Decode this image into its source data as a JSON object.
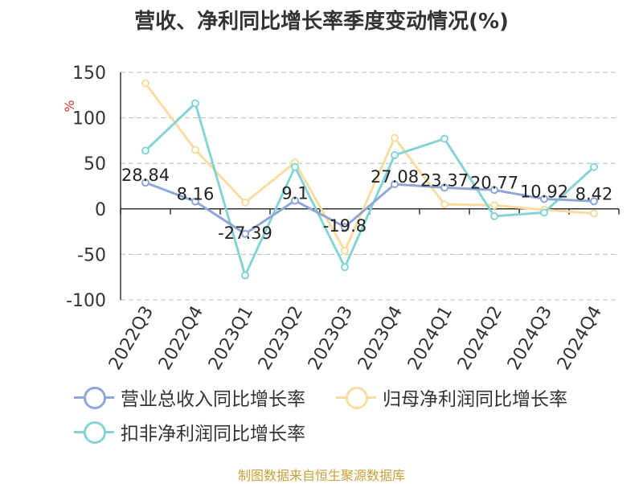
{
  "title": "营收、净利同比增长率季度变动情况(%)",
  "source": "制图数据来自恒生聚源数据库",
  "chart_data": {
    "type": "line",
    "ylabel": "%",
    "ylim": [
      -100,
      150
    ],
    "yticks": [
      150,
      100,
      50,
      0,
      -50,
      -100
    ],
    "grid": true,
    "legend_position": "bottom",
    "categories": [
      "2022Q3",
      "2022Q4",
      "2023Q1",
      "2023Q2",
      "2023Q3",
      "2023Q4",
      "2024Q1",
      "2024Q2",
      "2024Q3",
      "2024Q4"
    ],
    "series": [
      {
        "name": "营业总收入同比增长率",
        "color": "#8fa6d6",
        "values": [
          28.84,
          8.16,
          -27.39,
          9.1,
          -19.8,
          27.08,
          23.37,
          20.77,
          10.92,
          8.42
        ],
        "labels": [
          "28.84",
          "8.16",
          "-27.39",
          "9.1",
          "-19.8",
          "27.08",
          "23.37",
          "20.77",
          "10.92",
          "8.42"
        ]
      },
      {
        "name": "归母净利润同比增长率",
        "color": "#f8dca0",
        "values": [
          138,
          65,
          7,
          51,
          -46,
          78,
          5,
          4,
          -1,
          -5
        ]
      },
      {
        "name": "扣非净利润同比增长率",
        "color": "#86d3d6",
        "values": [
          64,
          116,
          -73,
          46,
          -64,
          59,
          77,
          -8,
          -4,
          46
        ]
      }
    ]
  }
}
